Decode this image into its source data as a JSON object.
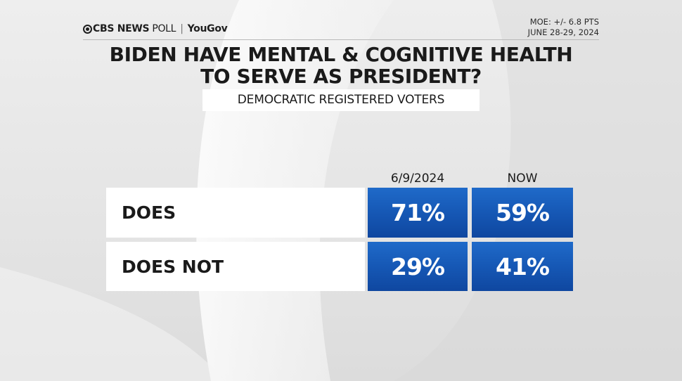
{
  "branding": {
    "network": "CBS NEWS",
    "poll": "POLL",
    "partner": "YouGov"
  },
  "meta": {
    "moe": "MOE: +/- 6.8 PTS",
    "dates": "JUNE 28-29, 2024"
  },
  "colors": {
    "cell_blue": "#1556b3",
    "label_bg": "#ffffff",
    "text_dark": "#1a1a1a"
  },
  "chart_data": {
    "type": "table",
    "title_line1": "BIDEN HAVE MENTAL & COGNITIVE HEALTH",
    "title_line2": "TO SERVE AS PRESIDENT?",
    "subtitle": "DEMOCRATIC REGISTERED VOTERS",
    "columns": [
      "6/9/2024",
      "NOW"
    ],
    "rows": [
      {
        "label": "DOES",
        "values": [
          71,
          59
        ],
        "display": [
          "71%",
          "59%"
        ]
      },
      {
        "label": "DOES NOT",
        "values": [
          29,
          41
        ],
        "display": [
          "29%",
          "41%"
        ]
      }
    ]
  }
}
